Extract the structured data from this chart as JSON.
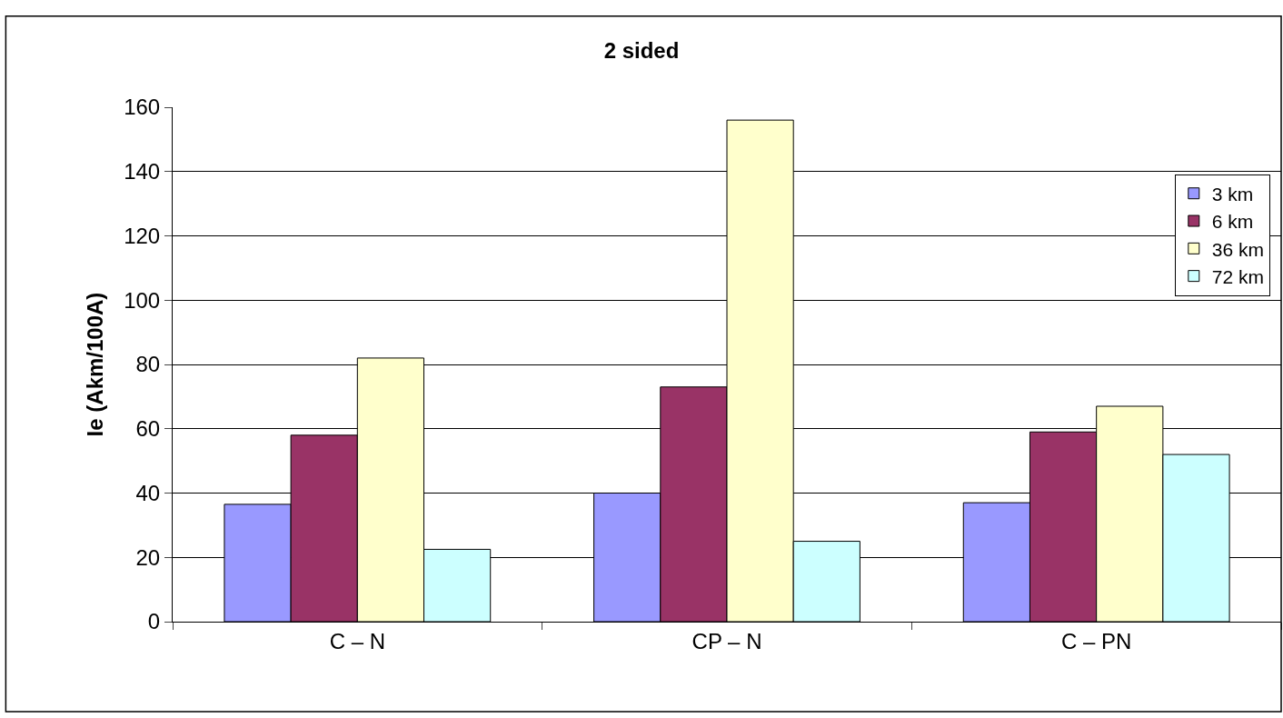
{
  "chart_data": {
    "type": "bar",
    "title": "2 sided",
    "ylabel": "Ie (Akm/100A)",
    "categories": [
      "C – N",
      "CP – N",
      "C – PN"
    ],
    "series": [
      {
        "name": "3 km",
        "color": "#9999ff",
        "values": [
          36.5,
          40,
          37
        ]
      },
      {
        "name": "6 km",
        "color": "#993366",
        "values": [
          58,
          73,
          59
        ]
      },
      {
        "name": "36 km",
        "color": "#ffffcc",
        "values": [
          82,
          156,
          67
        ]
      },
      {
        "name": "72 km",
        "color": "#ccffff",
        "values": [
          22.5,
          25,
          52
        ]
      }
    ],
    "ylim": [
      0,
      160
    ],
    "yticks": [
      0,
      20,
      40,
      60,
      80,
      100,
      120,
      140,
      160
    ],
    "grid": "y",
    "legend": "top right"
  }
}
